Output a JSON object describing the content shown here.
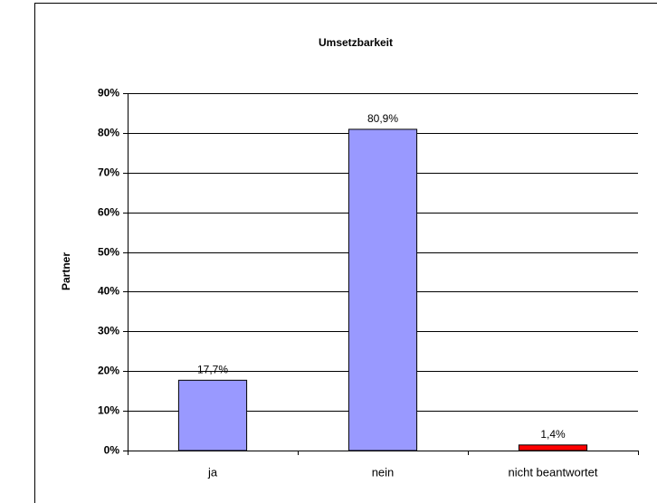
{
  "chart_data": {
    "type": "bar",
    "title": "Umsetzbarkeit",
    "y_label": "Partner",
    "categories": [
      "ja",
      "nein",
      "nicht beantwortet"
    ],
    "values": [
      17.7,
      80.9,
      1.4
    ],
    "value_labels": [
      "17,7%",
      "80,9%",
      "1,4%"
    ],
    "colors": [
      "#9999ff",
      "#9999ff",
      "#ff0000"
    ],
    "ylim": [
      0,
      90
    ],
    "yticks": [
      {
        "value": 0,
        "label": "0%"
      },
      {
        "value": 10,
        "label": "10%"
      },
      {
        "value": 20,
        "label": "20%"
      },
      {
        "value": 30,
        "label": "30%"
      },
      {
        "value": 40,
        "label": "40%"
      },
      {
        "value": 50,
        "label": "50%"
      },
      {
        "value": 60,
        "label": "60%"
      },
      {
        "value": 70,
        "label": "70%"
      },
      {
        "value": 80,
        "label": "80%"
      },
      {
        "value": 90,
        "label": "90%"
      }
    ],
    "grid": true
  }
}
